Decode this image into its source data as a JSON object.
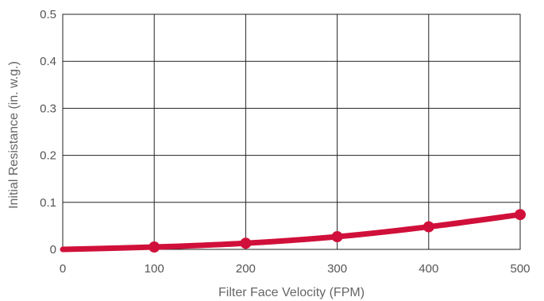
{
  "chart_data": {
    "type": "line",
    "title": "",
    "xlabel": "Filter Face Velocity (FPM)",
    "ylabel": "Initial Resistance (in. w.g.)",
    "xlim": [
      0,
      500
    ],
    "ylim": [
      0,
      0.5
    ],
    "x_ticks": [
      "0",
      "100",
      "200",
      "300",
      "400",
      "500"
    ],
    "y_ticks": [
      "0",
      "0.1",
      "0.2",
      "0.3",
      "0.4",
      "0.5"
    ],
    "grid": true,
    "legend": "none",
    "series": [
      {
        "color": "#d0103a",
        "x": [
          0,
          100,
          200,
          300,
          400,
          500
        ],
        "y": [
          0,
          0.005,
          0.013,
          0.027,
          0.048,
          0.074
        ]
      }
    ]
  }
}
